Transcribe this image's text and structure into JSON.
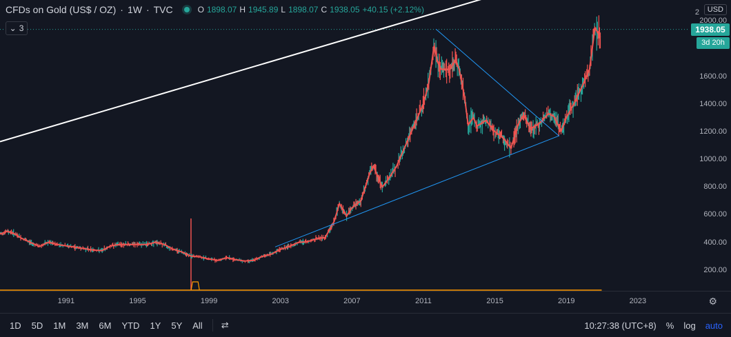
{
  "header": {
    "title": "CFDs on Gold (US$ / OZ)",
    "interval": "1W",
    "exchange": "TVC",
    "separator": "·",
    "ohlc": {
      "o_label": "O",
      "o": "1898.07",
      "h_label": "H",
      "h": "1945.89",
      "l_label": "L",
      "l": "1898.07",
      "c_label": "C",
      "c": "1938.05",
      "change": "+40.15 (+2.12%)"
    },
    "indicators_count": "3"
  },
  "price_scale": {
    "currency": "USD",
    "ticks": [
      "200.00",
      "400.00",
      "600.00",
      "800.00",
      "1000.00",
      "1200.00",
      "1400.00",
      "1600.00",
      "2000.00"
    ],
    "last_price": "1938.05",
    "countdown": "3d 20h",
    "top_partial": "2"
  },
  "time_scale": {
    "ticks": [
      "1991",
      "1995",
      "1999",
      "2003",
      "2007",
      "2011",
      "2015",
      "2019",
      "2023"
    ]
  },
  "bottom_bar": {
    "ranges": [
      "1D",
      "5D",
      "1M",
      "3M",
      "6M",
      "YTD",
      "1Y",
      "5Y",
      "All"
    ],
    "clock": "10:27:38 (UTC+8)",
    "percent": "%",
    "log": "log",
    "auto": "auto"
  },
  "colors": {
    "background": "#131722",
    "up": "#26a69a",
    "down": "#ef5350",
    "ma": "#ef5350",
    "trend_white": "#ffffff",
    "trend_blue": "#2196f3",
    "volume": "#ff9800"
  },
  "chart_data": {
    "type": "line",
    "title": "CFDs on Gold (US$ / OZ)",
    "xlabel": "",
    "ylabel": "",
    "xlim": [
      1987.3,
      2025.9
    ],
    "ylim": [
      50,
      2150
    ],
    "grid": false,
    "series": [
      {
        "x": [
          1987.3,
          1987.7,
          1988.0,
          1988.5,
          1989.0,
          1989.5,
          1990.0,
          1990.5,
          1991.0,
          1991.5,
          1992.0,
          1992.5,
          1993.0,
          1993.5,
          1994.0,
          1994.5,
          1995.0,
          1995.5,
          1996.0,
          1996.5,
          1997.0,
          1997.5,
          1998.0,
          1998.5,
          1999.0,
          1999.5,
          2000.0,
          2000.5,
          2001.0,
          2001.5,
          2002.0,
          2002.5,
          2003.0,
          2003.5,
          2004.0,
          2004.5,
          2005.0,
          2005.5,
          2006.0,
          2006.3,
          2006.7,
          2007.0,
          2007.5,
          2008.0,
          2008.2,
          2008.7,
          2009.0,
          2009.5,
          2010.0,
          2010.5,
          2011.0,
          2011.3,
          2011.6,
          2011.8,
          2012.0,
          2012.5,
          2012.8,
          2013.0,
          2013.3,
          2013.5,
          2013.8,
          2014.0,
          2014.5,
          2015.0,
          2015.5,
          2015.9,
          2016.3,
          2016.6,
          2017.0,
          2017.5,
          2018.0,
          2018.3,
          2018.7,
          2019.0,
          2019.5,
          2020.0,
          2020.3,
          2020.6,
          2020.9
        ],
        "y": [
          460,
          480,
          470,
          430,
          400,
          370,
          400,
          385,
          375,
          365,
          355,
          345,
          340,
          375,
          385,
          385,
          385,
          385,
          400,
          385,
          350,
          330,
          300,
          295,
          280,
          270,
          290,
          275,
          265,
          270,
          300,
          315,
          350,
          370,
          400,
          405,
          425,
          435,
          550,
          680,
          590,
          650,
          700,
          900,
          950,
          800,
          850,
          950,
          1100,
          1250,
          1400,
          1550,
          1820,
          1700,
          1650,
          1650,
          1720,
          1650,
          1450,
          1250,
          1300,
          1240,
          1280,
          1200,
          1150,
          1080,
          1250,
          1320,
          1220,
          1260,
          1330,
          1310,
          1200,
          1300,
          1420,
          1560,
          1650,
          1950,
          1880
        ]
      }
    ],
    "trendlines": [
      {
        "from": [
          1987.3,
          1127
        ],
        "to": [
          2025.9,
          2600
        ]
      },
      {
        "from": [
          2011.7,
          1940
        ],
        "to": [
          2018.6,
          1167
        ]
      },
      {
        "from": [
          2002.7,
          367
        ],
        "to": [
          2018.6,
          1170
        ]
      }
    ],
    "last_price": 1938.05,
    "volume_spike_x": 1998.0
  }
}
